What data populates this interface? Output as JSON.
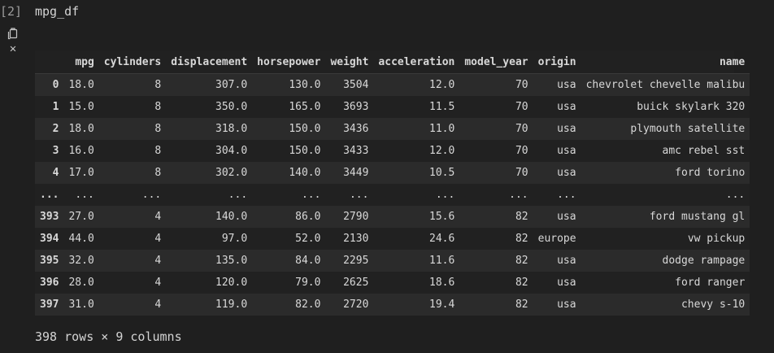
{
  "cell": {
    "execution_count": "[2]",
    "code": "mpg_df"
  },
  "toolbar": {
    "copy_icon": "copy-output-icon",
    "close_glyph": "✕"
  },
  "table": {
    "columns": [
      "",
      "mpg",
      "cylinders",
      "displacement",
      "horsepower",
      "weight",
      "acceleration",
      "model_year",
      "origin",
      "name"
    ],
    "rows": [
      [
        "0",
        "18.0",
        "8",
        "307.0",
        "130.0",
        "3504",
        "12.0",
        "70",
        "usa",
        "chevrolet chevelle malibu"
      ],
      [
        "1",
        "15.0",
        "8",
        "350.0",
        "165.0",
        "3693",
        "11.5",
        "70",
        "usa",
        "buick skylark 320"
      ],
      [
        "2",
        "18.0",
        "8",
        "318.0",
        "150.0",
        "3436",
        "11.0",
        "70",
        "usa",
        "plymouth satellite"
      ],
      [
        "3",
        "16.0",
        "8",
        "304.0",
        "150.0",
        "3433",
        "12.0",
        "70",
        "usa",
        "amc rebel sst"
      ],
      [
        "4",
        "17.0",
        "8",
        "302.0",
        "140.0",
        "3449",
        "10.5",
        "70",
        "usa",
        "ford torino"
      ],
      [
        "...",
        "...",
        "...",
        "...",
        "...",
        "...",
        "...",
        "...",
        "...",
        "..."
      ],
      [
        "393",
        "27.0",
        "4",
        "140.0",
        "86.0",
        "2790",
        "15.6",
        "82",
        "usa",
        "ford mustang gl"
      ],
      [
        "394",
        "44.0",
        "4",
        "97.0",
        "52.0",
        "2130",
        "24.6",
        "82",
        "europe",
        "vw pickup"
      ],
      [
        "395",
        "32.0",
        "4",
        "135.0",
        "84.0",
        "2295",
        "11.6",
        "82",
        "usa",
        "dodge rampage"
      ],
      [
        "396",
        "28.0",
        "4",
        "120.0",
        "79.0",
        "2625",
        "18.6",
        "82",
        "usa",
        "ford ranger"
      ],
      [
        "397",
        "31.0",
        "4",
        "119.0",
        "82.0",
        "2720",
        "19.4",
        "82",
        "usa",
        "chevy s-10"
      ]
    ]
  },
  "shape_text": "398 rows × 9 columns"
}
